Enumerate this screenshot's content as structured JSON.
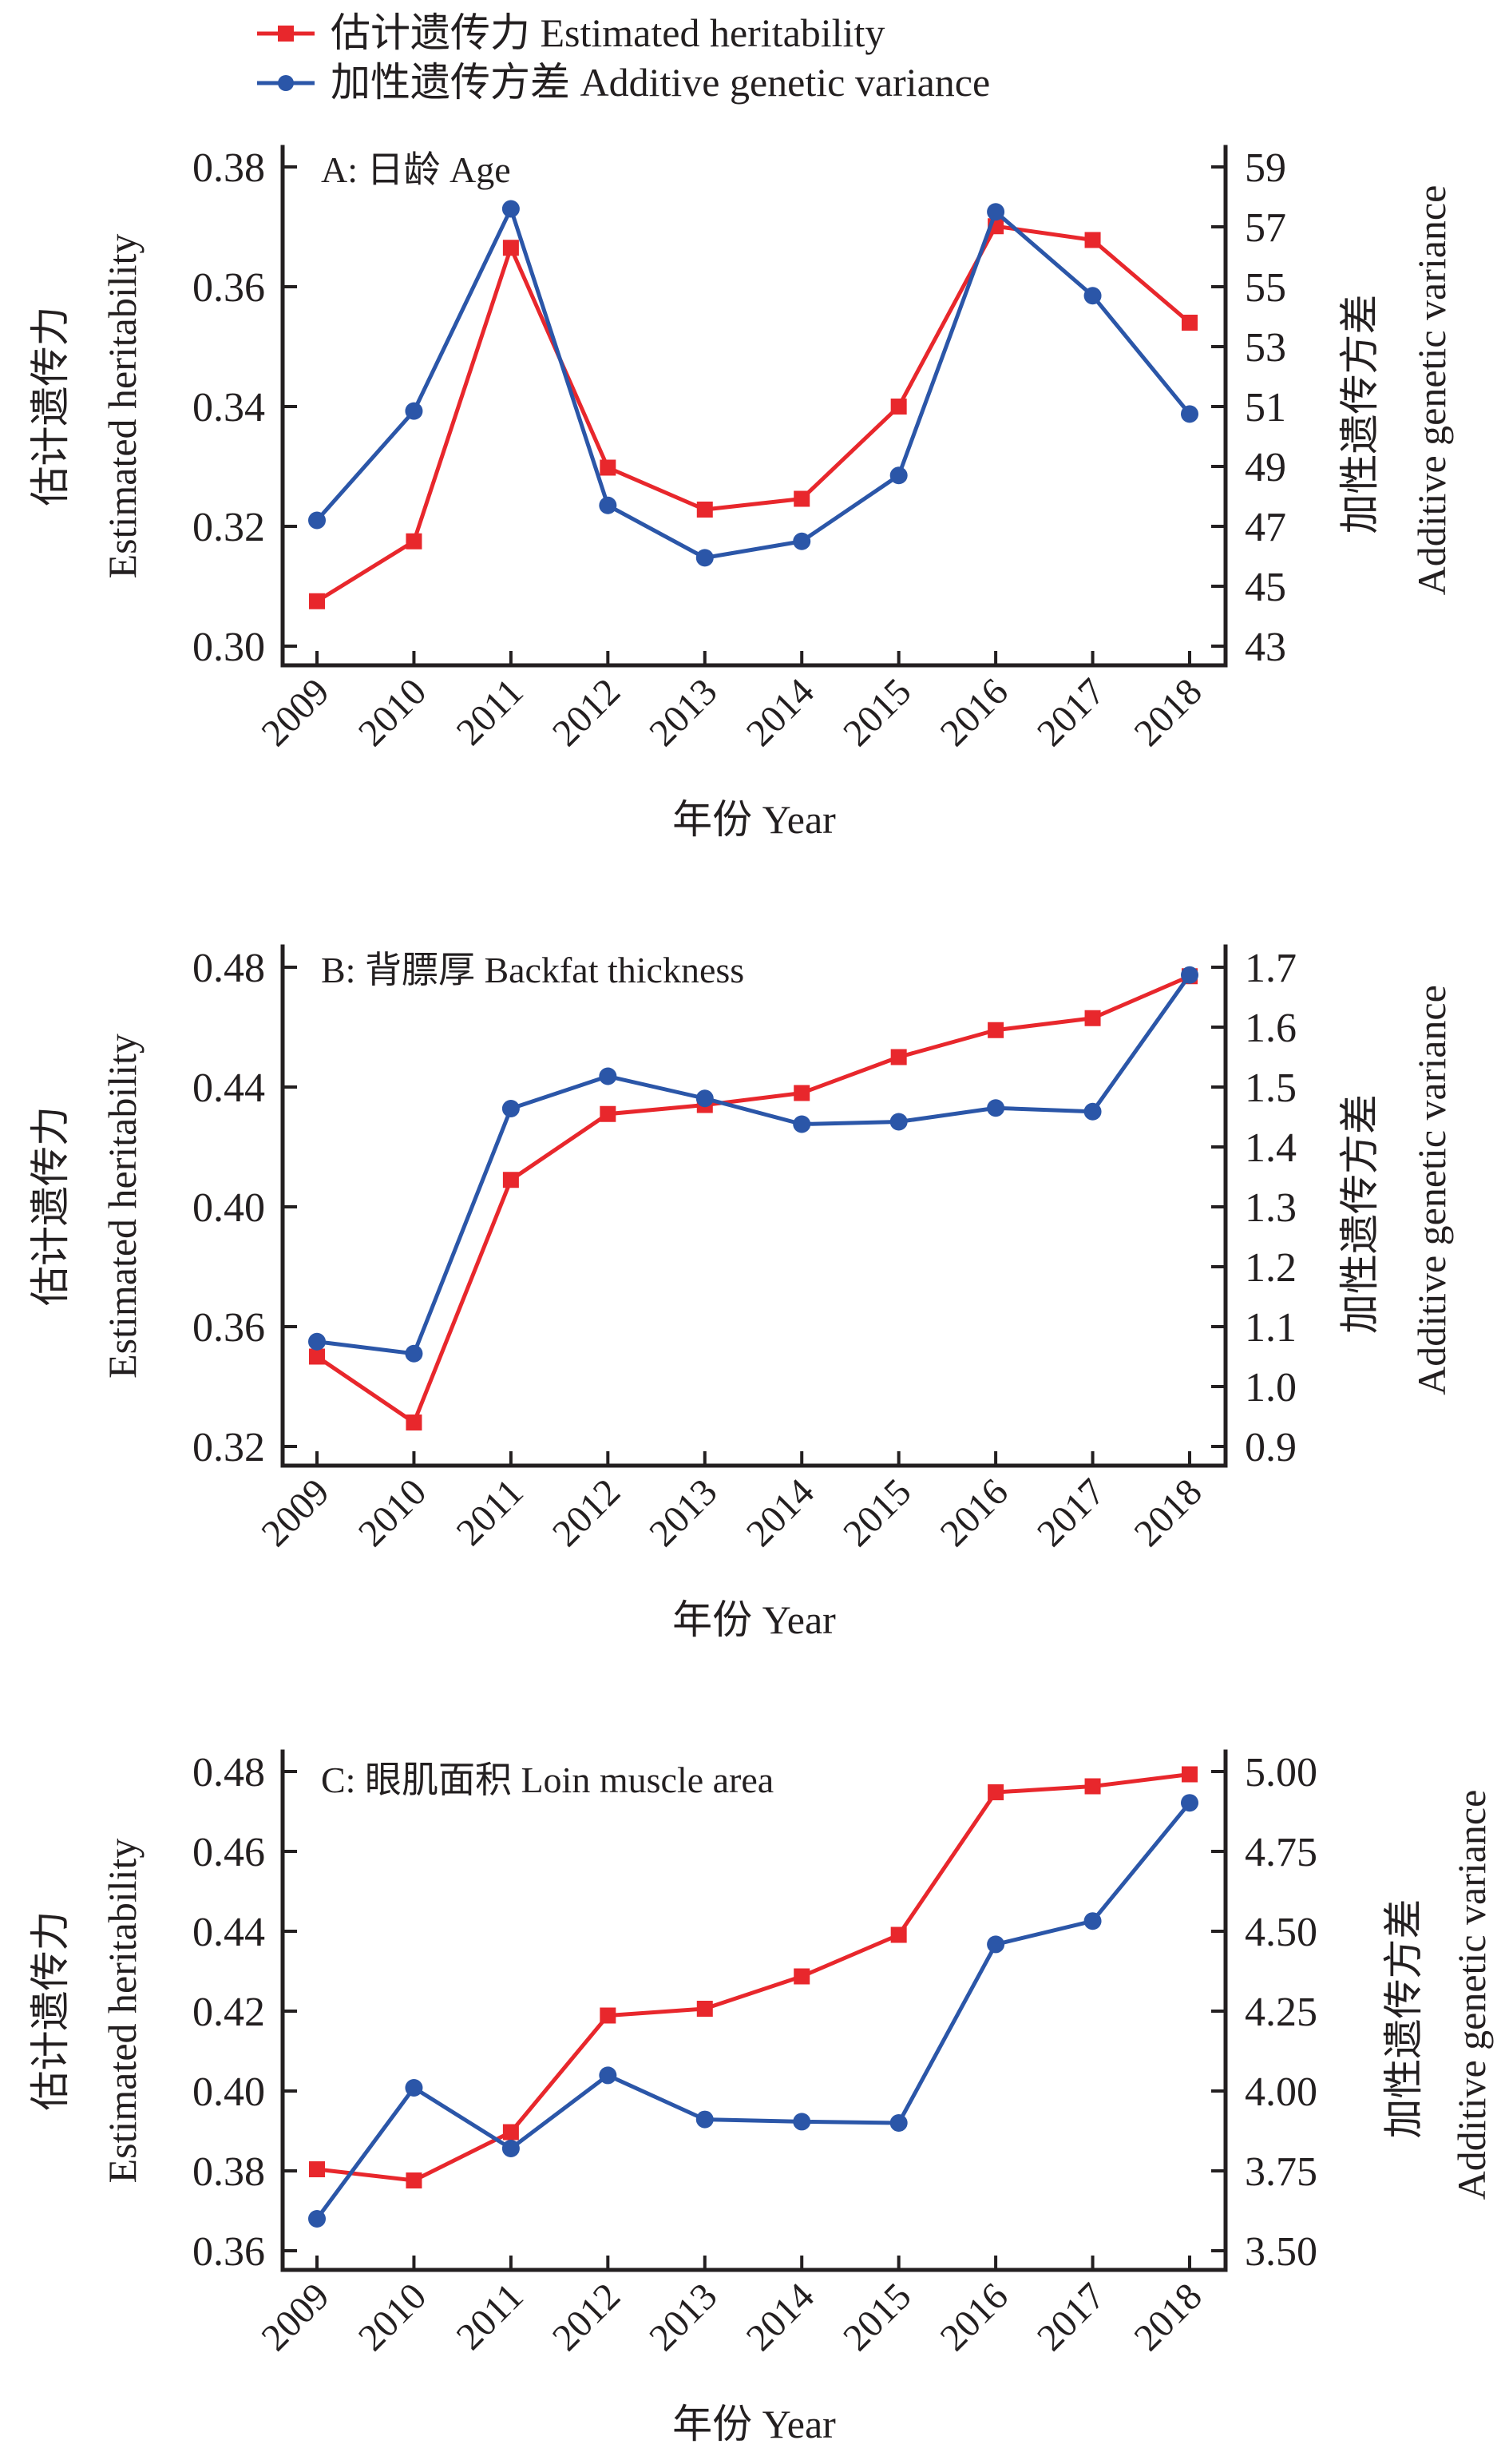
{
  "legend": {
    "items": [
      {
        "label": "估计遗传力 Estimated heritability",
        "color": "#e8272c",
        "marker": "square"
      },
      {
        "label": "加性遗传方差 Additive genetic variance",
        "color": "#2b56a8",
        "marker": "circle"
      }
    ]
  },
  "chart_data": [
    {
      "type": "line",
      "title": "A: 日龄 Age",
      "xlabel": "年份 Year",
      "ylabel_cn": "估计遗传力",
      "ylabel_en": "Estimated heritability",
      "y2label_cn": "加性遗传方差",
      "y2label_en": "Additive genetic variance",
      "categories": [
        "2009",
        "2010",
        "2011",
        "2012",
        "2013",
        "2014",
        "2015",
        "2016",
        "2017",
        "2018"
      ],
      "ylim": [
        0.3,
        0.38
      ],
      "yticks": [
        "0.30",
        "0.32",
        "0.34",
        "0.36",
        "0.38"
      ],
      "y2lim": [
        43,
        59
      ],
      "y2ticks": [
        "43",
        "45",
        "47",
        "49",
        "51",
        "53",
        "55",
        "57",
        "59"
      ],
      "grid": false,
      "legend_position": "top",
      "series": [
        {
          "name": "估计遗传力 Estimated heritability",
          "axis": "left",
          "color": "#e8272c",
          "marker": "square",
          "values": [
            0.3075,
            0.3175,
            0.3665,
            0.3298,
            0.3228,
            0.3246,
            0.34,
            0.3701,
            0.3678,
            0.354
          ]
        },
        {
          "name": "加性遗传方差 Additive genetic variance",
          "axis": "right",
          "color": "#2b56a8",
          "marker": "circle",
          "values": [
            47.2,
            50.85,
            57.6,
            47.7,
            45.95,
            46.5,
            48.7,
            57.5,
            54.7,
            50.75
          ]
        }
      ]
    },
    {
      "type": "line",
      "title": "B: 背膘厚 Backfat thickness",
      "xlabel": "年份 Year",
      "ylabel_cn": "估计遗传力",
      "ylabel_en": "Estimated heritability",
      "y2label_cn": "加性遗传方差",
      "y2label_en": "Additive genetic variance",
      "categories": [
        "2009",
        "2010",
        "2011",
        "2012",
        "2013",
        "2014",
        "2015",
        "2016",
        "2017",
        "2018"
      ],
      "ylim": [
        0.32,
        0.48
      ],
      "yticks": [
        "0.32",
        "0.36",
        "0.40",
        "0.44",
        "0.48"
      ],
      "y2lim": [
        0.9,
        1.7
      ],
      "y2ticks": [
        "0.9",
        "1.0",
        "1.1",
        "1.2",
        "1.3",
        "1.4",
        "1.5",
        "1.6",
        "1.7"
      ],
      "grid": false,
      "series": [
        {
          "name": "估计遗传力 Estimated heritability",
          "axis": "left",
          "color": "#e8272c",
          "marker": "square",
          "values": [
            0.35,
            0.328,
            0.409,
            0.431,
            0.434,
            0.438,
            0.45,
            0.459,
            0.463,
            0.477
          ]
        },
        {
          "name": "加性遗传方差 Additive genetic variance",
          "axis": "right",
          "color": "#2b56a8",
          "marker": "circle",
          "values": [
            1.075,
            1.055,
            1.464,
            1.518,
            1.481,
            1.438,
            1.442,
            1.465,
            1.459,
            1.687
          ]
        }
      ]
    },
    {
      "type": "line",
      "title": "C: 眼肌面积 Loin muscle area",
      "xlabel": "年份 Year",
      "ylabel_cn": "估计遗传力",
      "ylabel_en": "Estimated heritability",
      "y2label_cn": "加性遗传方差",
      "y2label_en": "Additive genetic variance",
      "categories": [
        "2009",
        "2010",
        "2011",
        "2012",
        "2013",
        "2014",
        "2015",
        "2016",
        "2017",
        "2018"
      ],
      "ylim": [
        0.36,
        0.48
      ],
      "yticks": [
        "0.36",
        "0.38",
        "0.40",
        "0.42",
        "0.44",
        "0.46",
        "0.48"
      ],
      "y2lim": [
        3.5,
        5.0
      ],
      "y2ticks": [
        "3.50",
        "3.75",
        "4.00",
        "4.25",
        "4.50",
        "4.75",
        "5.00"
      ],
      "grid": false,
      "series": [
        {
          "name": "估计遗传力 Estimated heritability",
          "axis": "left",
          "color": "#e8272c",
          "marker": "square",
          "values": [
            0.3804,
            0.3776,
            0.3897,
            0.4189,
            0.4206,
            0.4287,
            0.4391,
            0.4748,
            0.4763,
            0.4793
          ]
        },
        {
          "name": "加性遗传方差 Additive genetic variance",
          "axis": "right",
          "color": "#2b56a8",
          "marker": "circle",
          "values": [
            3.6,
            4.01,
            3.82,
            4.049,
            3.911,
            3.904,
            3.9,
            4.459,
            4.532,
            4.902
          ]
        }
      ]
    }
  ]
}
